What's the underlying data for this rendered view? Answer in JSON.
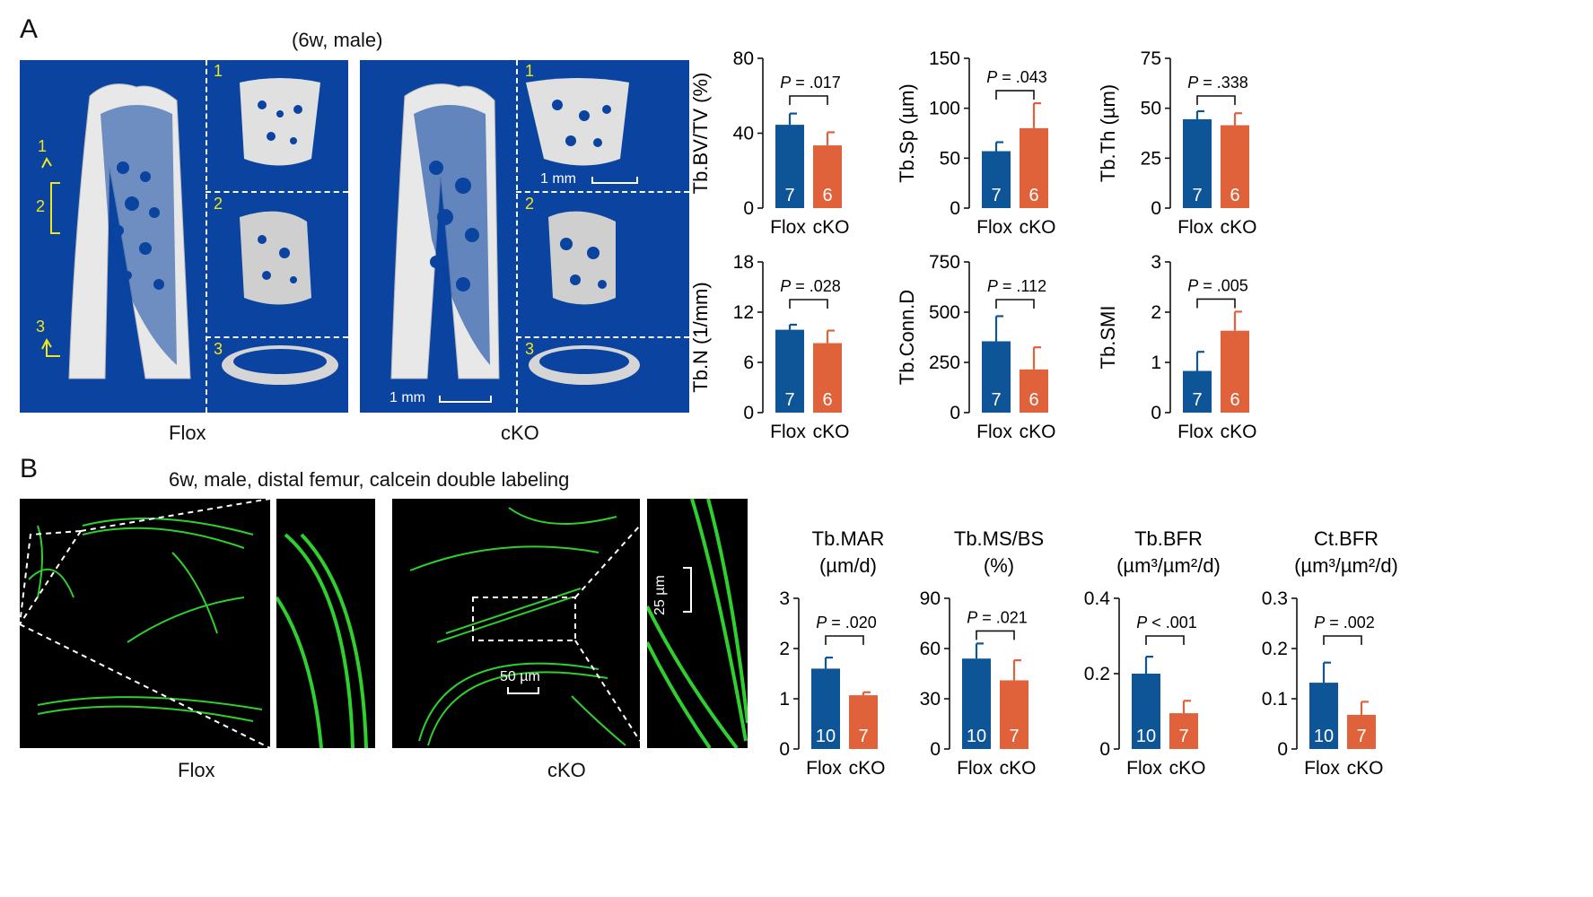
{
  "panelA": {
    "letter": "A",
    "title": "(6w, male)",
    "label_flox": "Flox",
    "label_cko": "cKO",
    "scale_top": "1 mm",
    "scale_bottom": "1 mm",
    "roi_marks": [
      "1",
      "2",
      "3"
    ],
    "subpanel_numbers": [
      "1",
      "2",
      "3"
    ]
  },
  "panelB": {
    "letter": "B",
    "title": "6w, male, distal femur, calcein double labeling",
    "label_flox": "Flox",
    "label_cko": "cKO",
    "scale_50": "50 µm",
    "scale_25": "25 µm"
  },
  "colors": {
    "flox": "#0d5597",
    "cko": "#e0623a",
    "bone_bg": "#0a43a0",
    "label": "#ffffff"
  },
  "chart_data": [
    {
      "type": "bar",
      "ylabel": "Tb.BV/TV (%)",
      "ylim": [
        0,
        80
      ],
      "yticks": [
        0,
        40,
        80
      ],
      "categories": [
        "Flox",
        "cKO"
      ],
      "values": [
        44.5,
        33.5
      ],
      "errors": [
        6,
        7
      ],
      "n": [
        "7",
        "6"
      ],
      "p": ".017"
    },
    {
      "type": "bar",
      "ylabel": "Tb.Sp (µm)",
      "ylim": [
        0,
        150
      ],
      "yticks": [
        0,
        50,
        100,
        150
      ],
      "categories": [
        "Flox",
        "cKO"
      ],
      "values": [
        57,
        80
      ],
      "errors": [
        9,
        25
      ],
      "n": [
        "7",
        "6"
      ],
      "p": ".043"
    },
    {
      "type": "bar",
      "ylabel": "Tb.Th (µm)",
      "ylim": [
        0,
        75
      ],
      "yticks": [
        0,
        25,
        50,
        75
      ],
      "categories": [
        "Flox",
        "cKO"
      ],
      "values": [
        44.5,
        41.5
      ],
      "errors": [
        4,
        6
      ],
      "n": [
        "7",
        "6"
      ],
      "p": ".338"
    },
    {
      "type": "bar",
      "ylabel": "Tb.N (1/mm)",
      "ylim": [
        0,
        18
      ],
      "yticks": [
        0,
        6,
        12,
        18
      ],
      "categories": [
        "Flox",
        "cKO"
      ],
      "values": [
        9.9,
        8.3
      ],
      "errors": [
        0.6,
        1.5
      ],
      "n": [
        "7",
        "6"
      ],
      "p": ".028"
    },
    {
      "type": "bar",
      "ylabel": "Tb.Conn.D",
      "ylim": [
        0,
        750
      ],
      "yticks": [
        0,
        250,
        500,
        750
      ],
      "categories": [
        "Flox",
        "cKO"
      ],
      "values": [
        355,
        215
      ],
      "errors": [
        125,
        110
      ],
      "n": [
        "7",
        "6"
      ],
      "p": ".112"
    },
    {
      "type": "bar",
      "ylabel": "Tb.SMI",
      "ylim": [
        0,
        3
      ],
      "yticks": [
        0,
        1,
        2,
        3
      ],
      "categories": [
        "Flox",
        "cKO"
      ],
      "values": [
        0.83,
        1.63
      ],
      "errors": [
        0.38,
        0.38
      ],
      "n": [
        "7",
        "6"
      ],
      "p": ".005"
    },
    {
      "type": "bar",
      "title_lines": [
        "Tb.MAR",
        "(µm/d)"
      ],
      "ylim": [
        0,
        3
      ],
      "yticks": [
        0,
        1,
        2,
        3
      ],
      "categories": [
        "Flox",
        "cKO"
      ],
      "values": [
        1.6,
        1.07
      ],
      "errors": [
        0.22,
        0.06
      ],
      "n": [
        "10",
        "7"
      ],
      "p": ".020"
    },
    {
      "type": "bar",
      "title_lines": [
        "Tb.MS/BS",
        "(%)"
      ],
      "ylim": [
        0,
        90
      ],
      "yticks": [
        0,
        30,
        60,
        90
      ],
      "categories": [
        "Flox",
        "cKO"
      ],
      "values": [
        54,
        41
      ],
      "errors": [
        9,
        12
      ],
      "n": [
        "10",
        "7"
      ],
      "p": ".021"
    },
    {
      "type": "bar",
      "title_lines": [
        "Tb.BFR",
        "(µm³/µm²/d)"
      ],
      "ylim": [
        0,
        0.4
      ],
      "yticks": [
        0,
        0.2,
        0.4
      ],
      "ytick_labels": [
        "0",
        "0.2",
        "0.4"
      ],
      "categories": [
        "Flox",
        "cKO"
      ],
      "values": [
        0.2,
        0.095
      ],
      "errors": [
        0.045,
        0.033
      ],
      "n": [
        "10",
        "7"
      ],
      "p": "< .001"
    },
    {
      "type": "bar",
      "title_lines": [
        "Ct.BFR",
        "(µm³/µm²/d)"
      ],
      "ylim": [
        0,
        0.3
      ],
      "yticks": [
        0,
        0.1,
        0.2,
        0.3
      ],
      "ytick_labels": [
        "0",
        "0.1",
        "0.2",
        "0.3"
      ],
      "categories": [
        "Flox",
        "cKO"
      ],
      "values": [
        0.132,
        0.068
      ],
      "errors": [
        0.04,
        0.026
      ],
      "n": [
        "10",
        "7"
      ],
      "p": ".002"
    }
  ]
}
